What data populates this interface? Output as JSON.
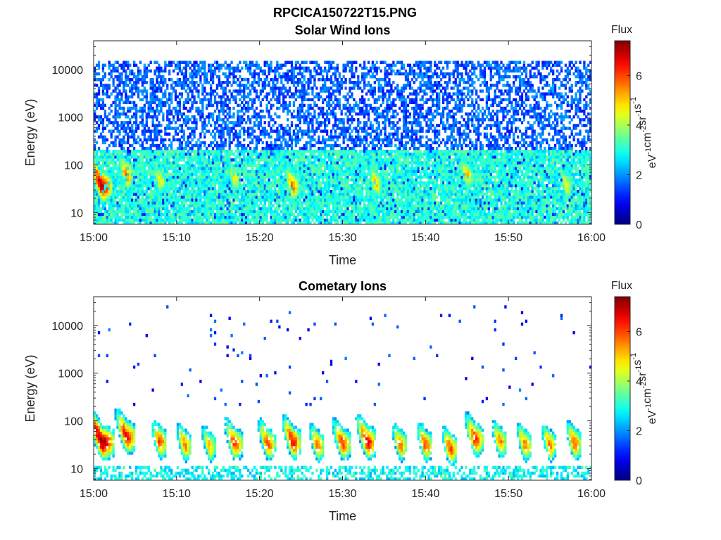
{
  "figure_title": "RPCICA150722T15.PNG",
  "colorbar": {
    "title": "Flux",
    "label": "eV-1 cm-2 sr-1 s-1",
    "ticks": [
      0,
      2,
      4,
      6
    ],
    "range": [
      0,
      7.4
    ],
    "colormap": "jet"
  },
  "colors": {
    "axis": "#262626",
    "background": "#ffffff",
    "text": "#000000"
  },
  "chart_data": [
    {
      "type": "heatmap",
      "title": "Solar Wind Ions",
      "xlabel": "Time",
      "ylabel": "Energy (eV)",
      "x_range": [
        "15:00",
        "16:00"
      ],
      "xticks": [
        "15:00",
        "15:10",
        "15:20",
        "15:30",
        "15:40",
        "15:50",
        "16:00"
      ],
      "ylim": [
        5.7,
        40000
      ],
      "yscale": "log",
      "yticks": [
        10,
        100,
        1000,
        10000
      ],
      "ytick_labels": [
        "10",
        "100",
        "1000",
        "10000"
      ],
      "value_label": "Flux",
      "time_bins": 240,
      "energy_bins": 64,
      "description": "Sparse speckled background flux across all energies; blue (flux 1-2) at 1-15 keV, cyan-green (flux 3-4) at 10-200 eV, with weak orange bursts near 30-40 eV.",
      "features": [
        {
          "kind": "background",
          "elow": 6,
          "ehigh": 15000,
          "level": 1.6,
          "fill": 0.55
        },
        {
          "kind": "background",
          "elow": 6,
          "ehigh": 200,
          "level": 3.0,
          "fill": 0.85
        },
        {
          "kind": "burst",
          "t": "15:01",
          "e": 35,
          "width": 1.5,
          "peak": 7.0
        },
        {
          "kind": "burst",
          "t": "15:04",
          "e": 60,
          "width": 1.0,
          "peak": 5.5
        },
        {
          "kind": "burst",
          "t": "15:08",
          "e": 45,
          "width": 1.0,
          "peak": 4.5
        },
        {
          "kind": "burst",
          "t": "15:17",
          "e": 50,
          "width": 1.0,
          "peak": 4.5
        },
        {
          "kind": "burst",
          "t": "15:24",
          "e": 35,
          "width": 1.0,
          "peak": 5.5
        },
        {
          "kind": "burst",
          "t": "15:34",
          "e": 40,
          "width": 1.0,
          "peak": 5.0
        },
        {
          "kind": "burst",
          "t": "15:45",
          "e": 60,
          "width": 1.0,
          "peak": 5.0
        },
        {
          "kind": "burst",
          "t": "15:57",
          "e": 35,
          "width": 1.0,
          "peak": 4.5
        }
      ]
    },
    {
      "type": "heatmap",
      "title": "Cometary Ions",
      "xlabel": "Time",
      "ylabel": "Energy (eV)",
      "x_range": [
        "15:00",
        "16:00"
      ],
      "xticks": [
        "15:00",
        "15:10",
        "15:20",
        "15:30",
        "15:40",
        "15:50",
        "16:00"
      ],
      "ylim": [
        5.7,
        40000
      ],
      "yscale": "log",
      "yticks": [
        10,
        100,
        1000,
        10000
      ],
      "ytick_labels": [
        "10",
        "100",
        "1000",
        "10000"
      ],
      "value_label": "Flux",
      "time_bins": 240,
      "energy_bins": 64,
      "description": "Periodic dispersive ion bursts about every 3 minutes peaking (flux 5-7) at 20-50 eV and extending to ~300 eV, with sparse isolated counts up to ~20 keV.",
      "features": [
        {
          "kind": "sparse",
          "elow": 200,
          "ehigh": 25000,
          "level": 1.3,
          "fill": 0.012
        },
        {
          "kind": "band",
          "elow": 6,
          "ehigh": 12,
          "level": 2.8,
          "fill": 0.5
        },
        {
          "kind": "burst",
          "t": "15:01",
          "e": 35,
          "width": 1.8,
          "peak": 7.2
        },
        {
          "kind": "burst",
          "t": "15:04",
          "e": 45,
          "width": 1.3,
          "peak": 6.5
        },
        {
          "kind": "burst",
          "t": "15:08",
          "e": 35,
          "width": 1.0,
          "peak": 6.0
        },
        {
          "kind": "burst",
          "t": "15:11",
          "e": 30,
          "width": 1.0,
          "peak": 5.5
        },
        {
          "kind": "burst",
          "t": "15:14",
          "e": 28,
          "width": 1.0,
          "peak": 5.0
        },
        {
          "kind": "burst",
          "t": "15:17",
          "e": 32,
          "width": 1.2,
          "peak": 6.0
        },
        {
          "kind": "burst",
          "t": "15:21",
          "e": 32,
          "width": 1.2,
          "peak": 5.8
        },
        {
          "kind": "burst",
          "t": "15:24",
          "e": 35,
          "width": 1.2,
          "peak": 6.5
        },
        {
          "kind": "burst",
          "t": "15:27",
          "e": 30,
          "width": 1.0,
          "peak": 5.5
        },
        {
          "kind": "burst",
          "t": "15:30",
          "e": 32,
          "width": 1.2,
          "peak": 6.0
        },
        {
          "kind": "burst",
          "t": "15:33",
          "e": 35,
          "width": 1.3,
          "peak": 6.5
        },
        {
          "kind": "burst",
          "t": "15:37",
          "e": 30,
          "width": 1.0,
          "peak": 5.5
        },
        {
          "kind": "burst",
          "t": "15:40",
          "e": 30,
          "width": 1.0,
          "peak": 5.8
        },
        {
          "kind": "burst",
          "t": "15:43",
          "e": 25,
          "width": 1.0,
          "peak": 6.0
        },
        {
          "kind": "burst",
          "t": "15:46",
          "e": 40,
          "width": 1.2,
          "peak": 6.2
        },
        {
          "kind": "burst",
          "t": "15:49",
          "e": 35,
          "width": 1.0,
          "peak": 5.5
        },
        {
          "kind": "burst",
          "t": "15:52",
          "e": 30,
          "width": 1.0,
          "peak": 5.5
        },
        {
          "kind": "burst",
          "t": "15:55",
          "e": 30,
          "width": 1.0,
          "peak": 5.5
        },
        {
          "kind": "burst",
          "t": "15:58",
          "e": 32,
          "width": 1.0,
          "peak": 5.8
        }
      ]
    }
  ]
}
